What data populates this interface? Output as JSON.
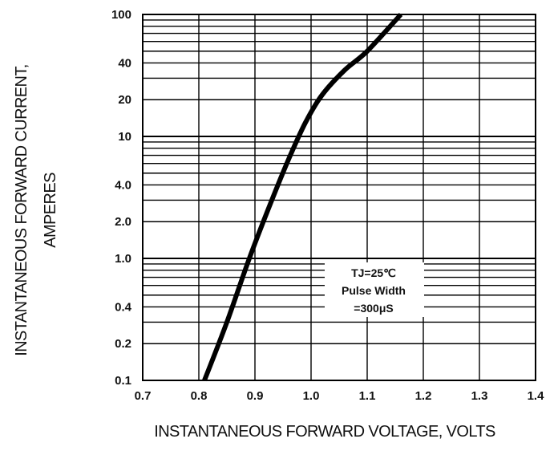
{
  "chart_data": {
    "type": "line",
    "xlabel": "INSTANTANEOUS FORWARD VOLTAGE,  VOLTS",
    "ylabel_lines": [
      "INSTANTANEOUS FORWARD CURRENT,",
      "AMPERES"
    ],
    "xlim": [
      0.7,
      1.4
    ],
    "ylim": [
      0.1,
      100
    ],
    "y_scale": "log",
    "grid": true,
    "x_ticks": [
      "0.7",
      "0.8",
      "0.9",
      "1.0",
      "1.1",
      "1.2",
      "1.3",
      "1.4"
    ],
    "y_ticks": [
      {
        "value": 0.1,
        "label": "0.1"
      },
      {
        "value": 0.2,
        "label": "0.2"
      },
      {
        "value": 0.4,
        "label": "0.4"
      },
      {
        "value": 1,
        "label": "1.0"
      },
      {
        "value": 2,
        "label": "2.0"
      },
      {
        "value": 4,
        "label": "4.0"
      },
      {
        "value": 10,
        "label": "10"
      },
      {
        "value": 20,
        "label": "20"
      },
      {
        "value": 40,
        "label": "40"
      },
      {
        "value": 100,
        "label": "100"
      }
    ],
    "series": [
      {
        "x": [
          0.81,
          0.85,
          0.89,
          0.93,
          0.96,
          0.99,
          1.02,
          1.06,
          1.1,
          1.16
        ],
        "y": [
          0.1,
          0.3,
          1.0,
          3.0,
          6.5,
          13,
          22,
          35,
          50,
          100
        ]
      }
    ],
    "annotation": {
      "lines": [
        "TJ=25℃",
        "Pulse Width",
        "=300μS"
      ]
    },
    "colors": {
      "line": "#000000",
      "grid": "#000000",
      "background": "#ffffff"
    }
  }
}
